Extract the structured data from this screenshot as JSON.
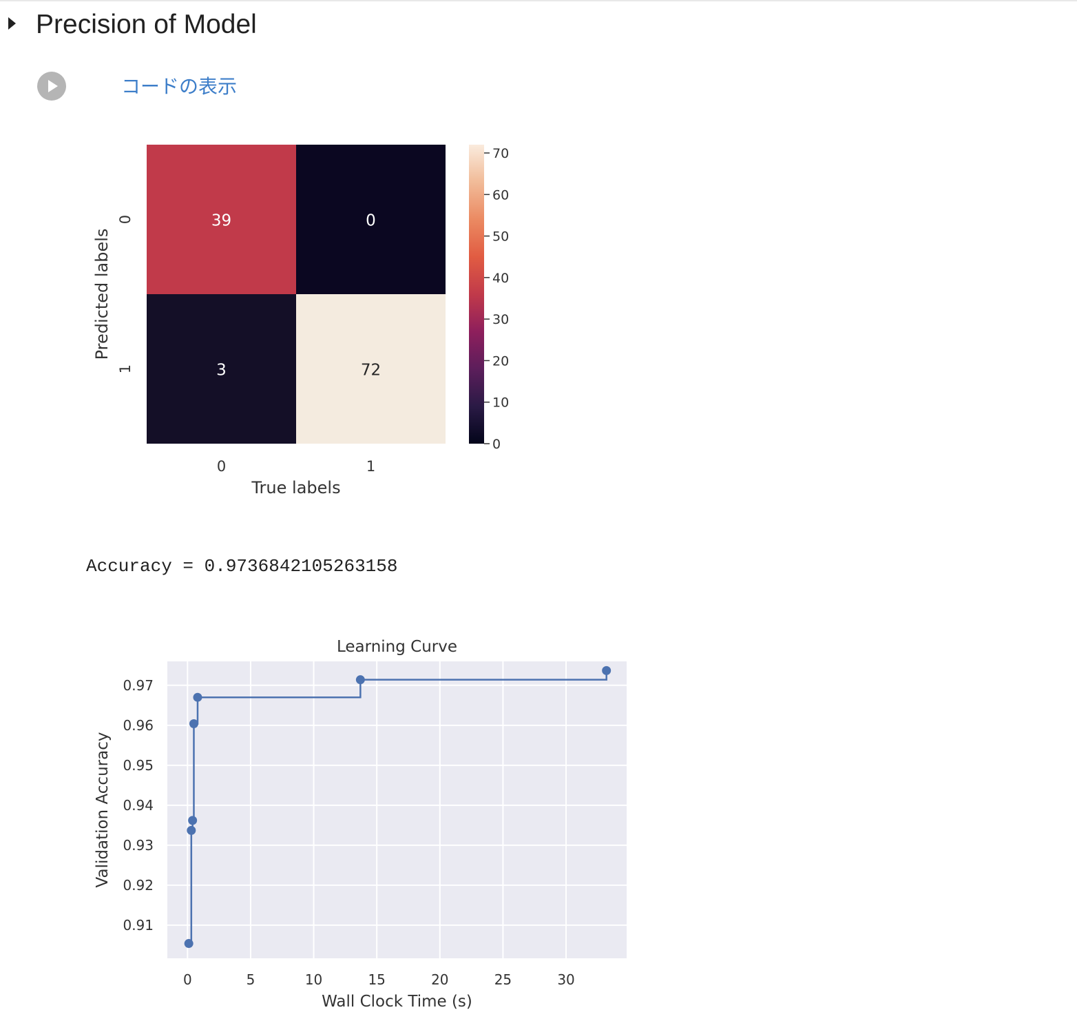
{
  "section": {
    "title": "Precision of Model",
    "show_code_label": "コードの表示"
  },
  "output": {
    "accuracy_text": "Accuracy = 0.9736842105263158"
  },
  "chart_data": [
    {
      "type": "heatmap",
      "title": "",
      "xlabel": "True labels",
      "ylabel": "Predicted labels",
      "x_categories": [
        "0",
        "1"
      ],
      "y_categories": [
        "0",
        "1"
      ],
      "values": [
        [
          39,
          0
        ],
        [
          3,
          72
        ]
      ],
      "cell_colors": [
        [
          "#c13a4a",
          "#0b0721"
        ],
        [
          "#140f27",
          "#f4ebdf"
        ]
      ],
      "annotation_colors": [
        [
          "#ffffff",
          "#ffffff"
        ],
        [
          "#ffffff",
          "#262626"
        ]
      ],
      "colorbar": {
        "range": [
          0,
          72
        ],
        "ticks": [
          "0",
          "10",
          "20",
          "30",
          "40",
          "50",
          "60",
          "70"
        ],
        "colors": [
          "#03051a",
          "#2a1a45",
          "#5c1e5b",
          "#8e1f5c",
          "#c13a4a",
          "#e15c42",
          "#eb8a62",
          "#f1bb98",
          "#faebdd"
        ]
      }
    },
    {
      "type": "line",
      "title": "Learning Curve",
      "xlabel": "Wall Clock Time (s)",
      "ylabel": "Validation Accuracy",
      "step": "post",
      "x": [
        0.1,
        0.3,
        0.4,
        0.5,
        0.8,
        13.7,
        33.2
      ],
      "y": [
        0.9054,
        0.9337,
        0.9362,
        0.9604,
        0.967,
        0.9714,
        0.9737
      ],
      "xlim": [
        -1.6,
        34.8
      ],
      "ylim": [
        0.9017,
        0.976
      ],
      "xticks": [
        "0",
        "5",
        "10",
        "15",
        "20",
        "25",
        "30"
      ],
      "yticks": [
        "0.91",
        "0.92",
        "0.93",
        "0.94",
        "0.95",
        "0.96",
        "0.97"
      ],
      "grid": true,
      "colors": {
        "line": "#4c72b0",
        "background": "#eaeaf2",
        "grid": "#ffffff"
      }
    }
  ]
}
